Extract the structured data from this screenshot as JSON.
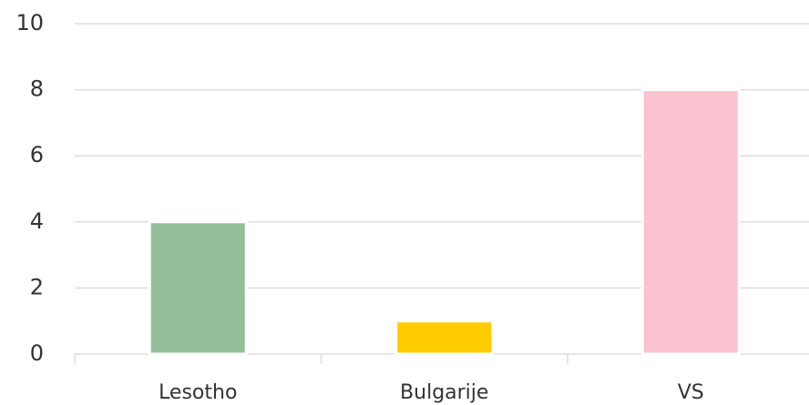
{
  "chart_data": {
    "type": "bar",
    "categories": [
      "Lesotho",
      "Bulgarije",
      "VS"
    ],
    "values": [
      4,
      1,
      8
    ],
    "colors": [
      "#93bf98",
      "#ffcc00",
      "#fbc3cf"
    ],
    "ylim": [
      0,
      10
    ],
    "yticks": [
      0,
      2,
      4,
      6,
      8,
      10
    ],
    "grid": true
  }
}
